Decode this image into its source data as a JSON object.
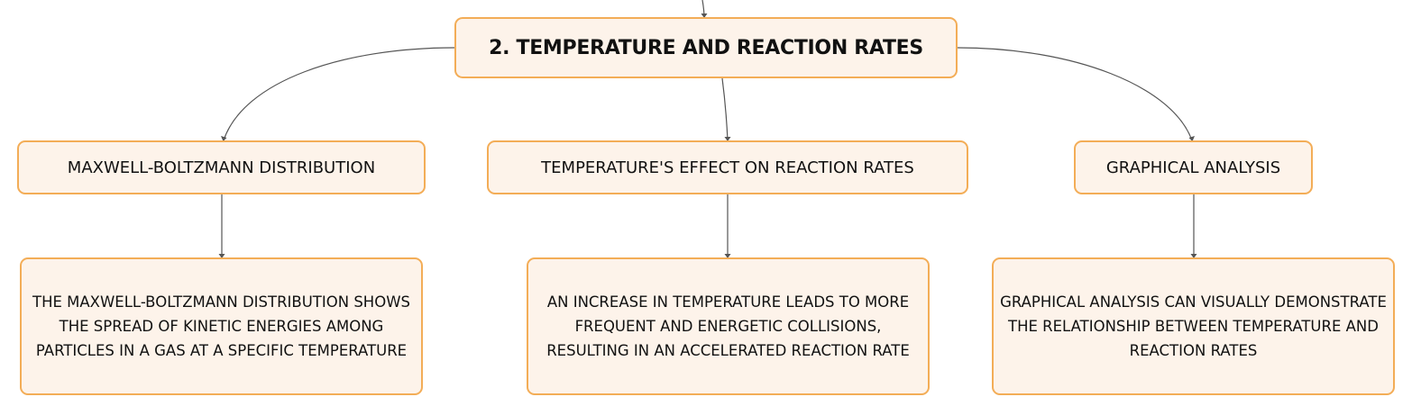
{
  "colors": {
    "node_fill": "#fdf3ea",
    "node_border": "#f3ad57",
    "connector": "#555555",
    "text": "#111111"
  },
  "root": {
    "label": "2. TEMPERATURE AND REACTION RATES"
  },
  "topics": [
    {
      "label": "MAXWELL-BOLTZMANN DISTRIBUTION",
      "detail": "THE MAXWELL-BOLTZMANN DISTRIBUTION SHOWS THE SPREAD OF KINETIC ENERGIES AMONG PARTICLES IN A GAS AT A SPECIFIC TEMPERATURE"
    },
    {
      "label": "TEMPERATURE'S EFFECT ON REACTION RATES",
      "detail": "AN INCREASE IN TEMPERATURE LEADS TO MORE FREQUENT AND ENERGETIC COLLISIONS, RESULTING IN AN ACCELERATED REACTION RATE"
    },
    {
      "label": "GRAPHICAL ANALYSIS",
      "detail": "GRAPHICAL ANALYSIS CAN VISUALLY DEMONSTRATE THE RELATIONSHIP BETWEEN TEMPERATURE AND REACTION RATES"
    }
  ]
}
